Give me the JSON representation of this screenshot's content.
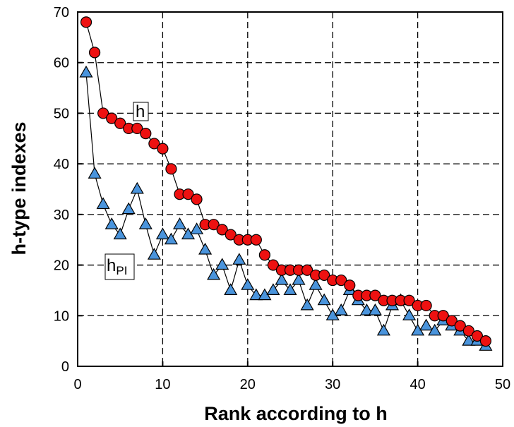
{
  "chart_data": {
    "type": "scatter",
    "title": "",
    "xlabel": "Rank according to h",
    "ylabel": "h-type indexes",
    "xlim": [
      0,
      50
    ],
    "ylim": [
      0,
      70
    ],
    "xticks": [
      "0",
      "10",
      "20",
      "30",
      "40",
      "50"
    ],
    "yticks": [
      "0",
      "10",
      "20",
      "30",
      "40",
      "50",
      "60",
      "70"
    ],
    "grid": "dashed",
    "legend": "none",
    "series": [
      {
        "name": "h",
        "marker": "circle",
        "color": "#ee1111",
        "x": [
          1,
          2,
          3,
          4,
          5,
          6,
          7,
          8,
          9,
          10,
          11,
          12,
          13,
          14,
          15,
          16,
          17,
          18,
          19,
          20,
          21,
          22,
          23,
          24,
          25,
          26,
          27,
          28,
          29,
          30,
          31,
          32,
          33,
          34,
          35,
          36,
          37,
          38,
          39,
          40,
          41,
          42,
          43,
          44,
          45,
          46,
          47,
          48
        ],
        "values": [
          68,
          62,
          50,
          49,
          48,
          47,
          47,
          46,
          44,
          43,
          39,
          34,
          34,
          33,
          28,
          28,
          27,
          26,
          25,
          25,
          25,
          22,
          20,
          19,
          19,
          19,
          19,
          18,
          18,
          17,
          17,
          16,
          14,
          14,
          14,
          13,
          13,
          13,
          13,
          12,
          12,
          10,
          10,
          9,
          8,
          7,
          6,
          5
        ]
      },
      {
        "name": "hPI",
        "marker": "triangle",
        "color": "#4a94dc",
        "x": [
          1,
          2,
          3,
          4,
          5,
          6,
          7,
          8,
          9,
          10,
          11,
          12,
          13,
          14,
          15,
          16,
          17,
          18,
          19,
          20,
          21,
          22,
          23,
          24,
          25,
          26,
          27,
          28,
          29,
          30,
          31,
          32,
          33,
          34,
          35,
          36,
          37,
          38,
          39,
          40,
          41,
          42,
          43,
          44,
          45,
          46,
          47,
          48
        ],
        "values": [
          58,
          38,
          32,
          28,
          26,
          31,
          35,
          28,
          22,
          26,
          25,
          28,
          26,
          27,
          23,
          18,
          20,
          15,
          21,
          16,
          14,
          14,
          15,
          17,
          15,
          17,
          12,
          16,
          13,
          10,
          11,
          15,
          13,
          11,
          11,
          7,
          12,
          13,
          10,
          7,
          8,
          7,
          9,
          8,
          7,
          5,
          5,
          4
        ]
      }
    ],
    "annotations": [
      {
        "text": "h",
        "sub": "",
        "series": "h"
      },
      {
        "text": "h",
        "sub": "PI",
        "series": "hPI"
      }
    ]
  }
}
